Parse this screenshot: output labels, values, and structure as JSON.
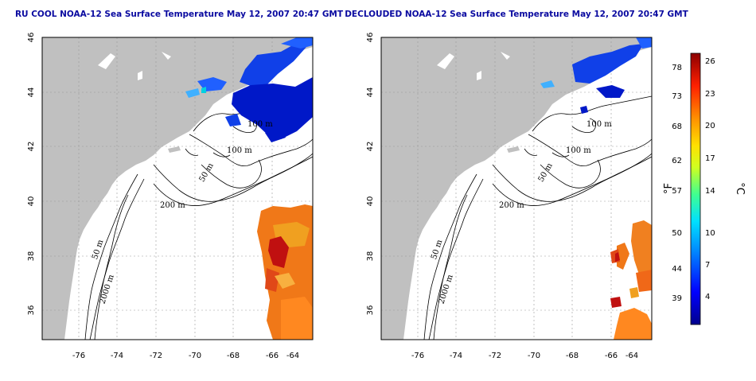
{
  "panels": [
    {
      "title": "RU COOL NOAA-12 Sea Surface Temperature May 12, 2007 20:47 GMT",
      "contour_labels": [
        "100 m",
        "100 m",
        "50 m",
        "200 m",
        "50 m",
        "2000 m"
      ]
    },
    {
      "title": "DECLOUDED NOAA-12 Sea Surface Temperature May 12, 2007 20:47 GMT",
      "contour_labels": [
        "100 m",
        "100 m",
        "50 m",
        "200 m",
        "50 m",
        "2000 m"
      ]
    }
  ],
  "axes": {
    "x_ticks": [
      "-76",
      "-74",
      "-72",
      "-70",
      "-68",
      "-66",
      "-64"
    ],
    "y_ticks": [
      "46",
      "44",
      "42",
      "40",
      "38",
      "36"
    ]
  },
  "colorbar": {
    "f_label": "°F",
    "c_label": "°C",
    "f_ticks": [
      "78",
      "73",
      "68",
      "62",
      "57",
      "50",
      "44",
      "39"
    ],
    "c_ticks": [
      "26",
      "23",
      "20",
      "17",
      "14",
      "10",
      "7",
      "4"
    ]
  },
  "colors": {
    "land": "#c0c0c0",
    "title": "#0a0aa0",
    "cold": "#0000b0",
    "warm": "#c00000"
  }
}
